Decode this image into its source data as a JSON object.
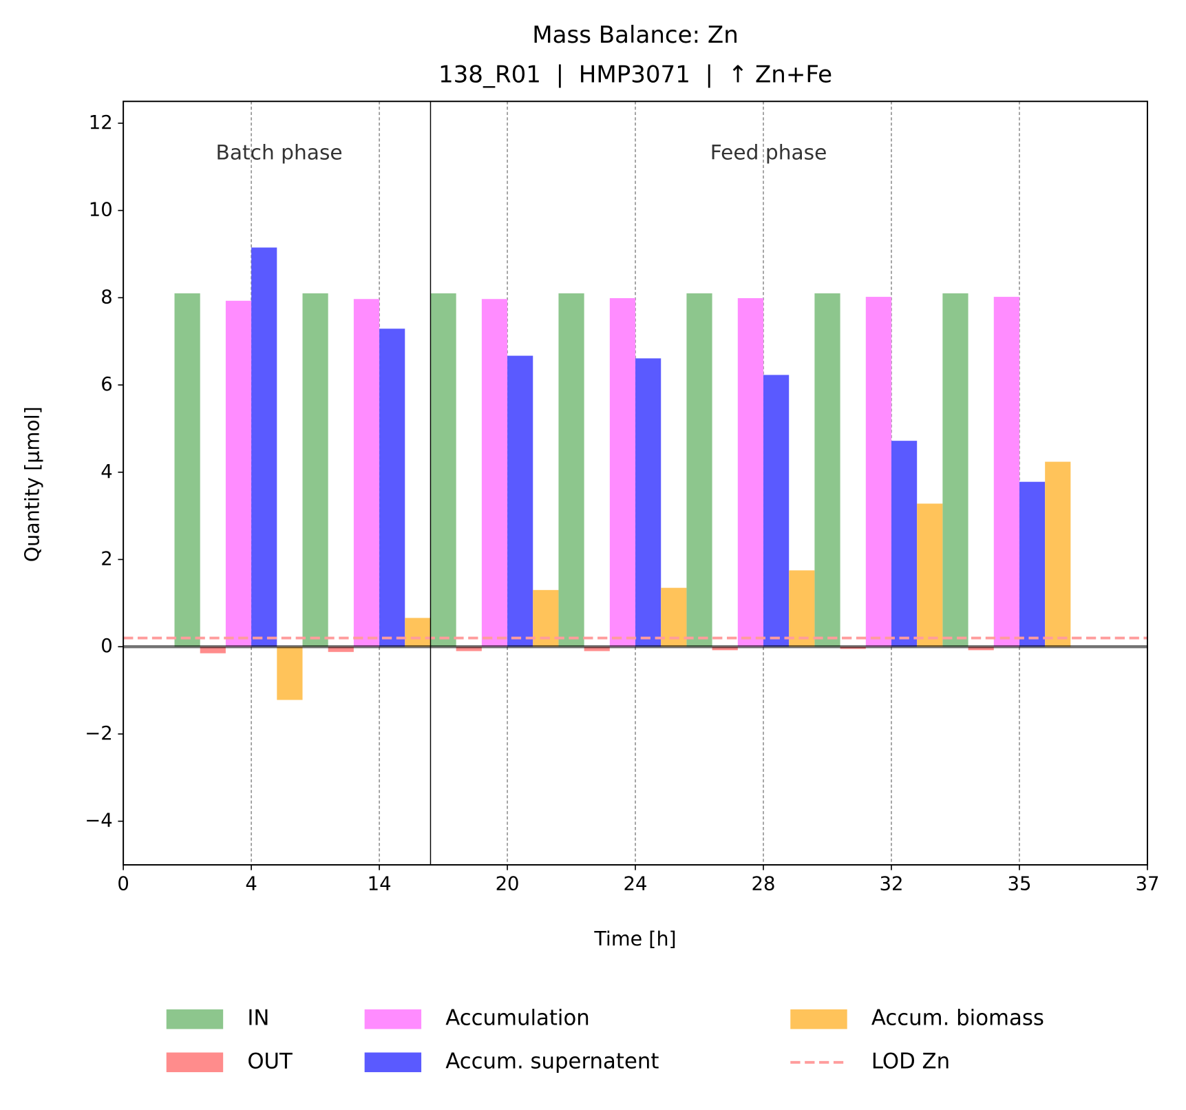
{
  "chart_data": {
    "type": "bar",
    "title": "Mass Balance: Zn",
    "subtitle": "138_R01  |  HMP3071  |  ↑ Zn+Fe",
    "x_label": "Time [h]",
    "y_label": "Quantity [µmol]",
    "categories": [
      "0",
      "4",
      "14",
      "20",
      "24",
      "28",
      "32",
      "35",
      "37"
    ],
    "series": [
      {
        "name": "IN",
        "color": "#8dc68d",
        "values": [
          null,
          8.1,
          8.1,
          8.1,
          8.1,
          8.1,
          8.1,
          8.1,
          null
        ]
      },
      {
        "name": "OUT",
        "color": "#ff8c8c",
        "values": [
          null,
          -0.15,
          -0.12,
          -0.1,
          -0.1,
          -0.08,
          -0.05,
          -0.08,
          null
        ]
      },
      {
        "name": "Accumulation",
        "color": "#ff8cff",
        "values": [
          null,
          7.93,
          7.97,
          7.97,
          7.99,
          7.99,
          8.02,
          8.02,
          null
        ]
      },
      {
        "name": "Accum. supernatent",
        "color": "#5a5aff",
        "values": [
          null,
          9.15,
          7.29,
          6.67,
          6.61,
          6.23,
          4.72,
          3.78,
          null
        ]
      },
      {
        "name": "Accum. biomass",
        "color": "#ffc35a",
        "values": [
          null,
          -1.22,
          0.66,
          1.3,
          1.35,
          1.75,
          3.28,
          4.24,
          null
        ]
      }
    ],
    "lod": {
      "name": "LOD Zn",
      "value": 0.2,
      "color": "#ff9c9c"
    },
    "phases": [
      "Batch phase",
      "Feed phase"
    ],
    "phase_boundary": 2.4,
    "ylim": [
      -5,
      12.5
    ],
    "yticks": [
      {
        "value": -4,
        "label": "−4"
      },
      {
        "value": -2,
        "label": "−2"
      },
      0,
      2,
      4,
      6,
      8,
      10,
      12
    ],
    "grid": true
  }
}
